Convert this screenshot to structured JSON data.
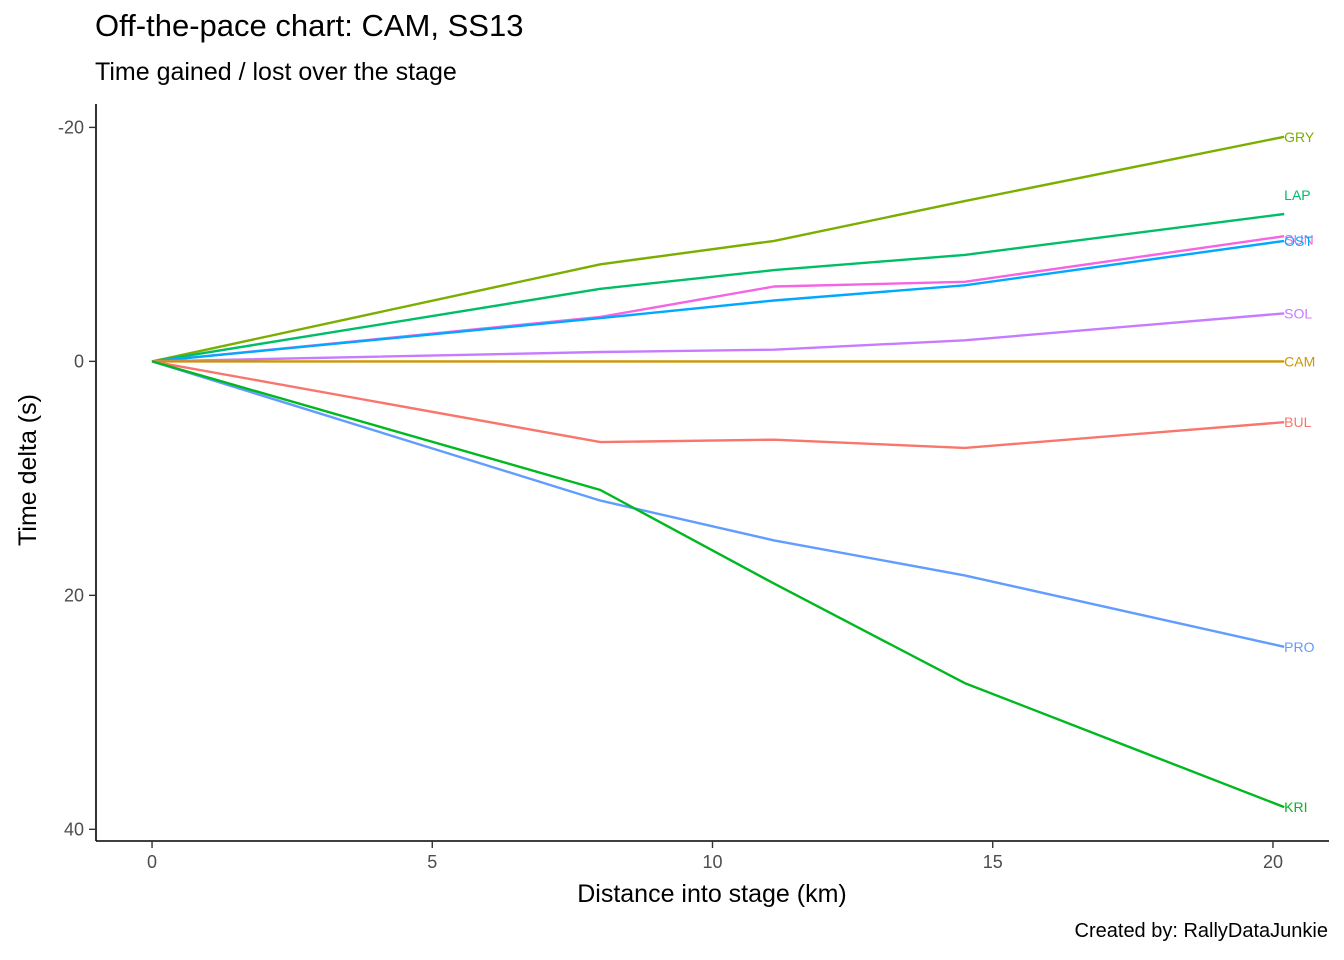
{
  "chart_data": {
    "type": "line",
    "title": "Off-the-pace chart: CAM, SS13",
    "subtitle": "Time gained / lost over the stage",
    "caption": "Created by: RallyDataJunkie",
    "xlabel": "Distance into stage (km)",
    "ylabel": "Time delta (s)",
    "xlim": [
      -1,
      21
    ],
    "ylim": [
      41,
      -22
    ],
    "y_reversed": true,
    "x_ticks": [
      0,
      5,
      10,
      15,
      20
    ],
    "y_ticks": [
      -20,
      0,
      20,
      40
    ],
    "y_tick_labels": [
      "-20",
      "0",
      "20",
      "40"
    ],
    "grid": false,
    "legend": "none",
    "x": [
      0,
      8.0,
      11.1,
      14.5,
      20.2
    ],
    "series": [
      {
        "name": "GRY",
        "color": "#7CAE00",
        "values": [
          0,
          -8.3,
          -10.3,
          -13.7,
          -19.2
        ]
      },
      {
        "name": "LAP",
        "color": "#00BE67",
        "values": [
          0,
          -6.2,
          -7.8,
          -9.1,
          -12.6
        ]
      },
      {
        "name": "SUN",
        "color": "#F564E3",
        "values": [
          0,
          -3.8,
          -6.4,
          -6.8,
          -10.7
        ]
      },
      {
        "name": "OST",
        "color": "#00A9FF",
        "values": [
          0,
          -3.7,
          -5.2,
          -6.5,
          -10.3
        ]
      },
      {
        "name": "SOL",
        "color": "#C77CFF",
        "values": [
          0,
          -0.8,
          -1.0,
          -1.8,
          -4.1
        ]
      },
      {
        "name": "CAM",
        "color": "#CD9600",
        "values": [
          0,
          0,
          0,
          0,
          0
        ]
      },
      {
        "name": "BUL",
        "color": "#F8766D",
        "values": [
          0,
          6.9,
          6.7,
          7.4,
          5.2
        ]
      },
      {
        "name": "PRO",
        "color": "#619CFF",
        "values": [
          0,
          11.9,
          15.3,
          18.3,
          24.4
        ]
      },
      {
        "name": "KRI",
        "color": "#00B81F",
        "values": [
          0,
          11.0,
          19.0,
          27.5,
          38.1
        ]
      }
    ],
    "end_label_offsets": {
      "GRY": 0,
      "LAP": -1.6,
      "SUN": 0.3,
      "OST": 0,
      "SOL": 0,
      "CAM": 0,
      "BUL": 0,
      "PRO": 0,
      "KRI": 0
    }
  }
}
